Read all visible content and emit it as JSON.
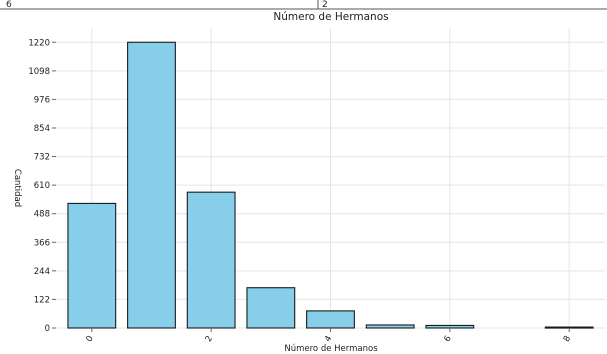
{
  "table_strip": {
    "cells": [
      "6",
      "2"
    ]
  },
  "chart_data": {
    "type": "bar",
    "title": "Número de Hermanos",
    "xlabel": "Número de Hermanos",
    "ylabel": "Cantidad",
    "categories": [
      0,
      1,
      2,
      3,
      4,
      5,
      6,
      7,
      8
    ],
    "values": [
      532,
      1220,
      580,
      172,
      73,
      13,
      11,
      0,
      4
    ],
    "x_tick_labels": [
      "0",
      "2",
      "4",
      "6",
      "8"
    ],
    "x_tick_values": [
      0,
      2,
      4,
      6,
      8
    ],
    "y_ticks": [
      0,
      122,
      244,
      366,
      488,
      610,
      732,
      854,
      976,
      1098,
      1220
    ],
    "y_tick_labels": [
      "0",
      "122",
      "244",
      "366",
      "488",
      "610",
      "732",
      "854",
      "976",
      "1098",
      "1220"
    ],
    "xlim": [
      -0.6,
      8.6
    ],
    "ylim": [
      0,
      1281
    ],
    "grid": true,
    "colors": {
      "bar_fill": "#87ceeb",
      "bar_edge": "#1a1a1a",
      "grid": "#e4e4e4"
    }
  }
}
